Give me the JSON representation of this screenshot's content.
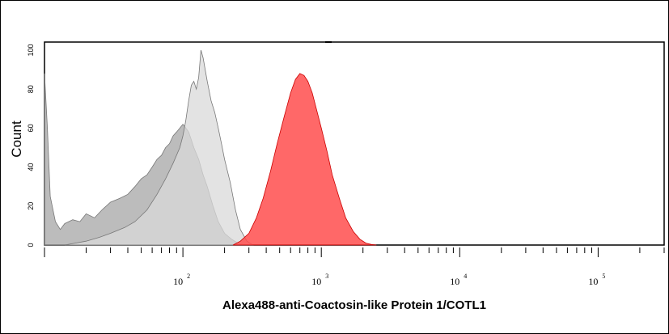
{
  "chart_data": {
    "type": "area",
    "title": "",
    "xlabel": "Alexa488-anti-Coactosin-like Protein 1/COTL1",
    "ylabel": "Count",
    "xscale": "log",
    "xlim": [
      10,
      300000
    ],
    "ylim": [
      0,
      100
    ],
    "x_ticks": [
      {
        "value": 100,
        "base": "10",
        "exp": "2"
      },
      {
        "value": 1000,
        "base": "10",
        "exp": "3"
      },
      {
        "value": 10000,
        "base": "10",
        "exp": "4"
      },
      {
        "value": 100000,
        "base": "10",
        "exp": "5"
      }
    ],
    "y_tick_labels": [
      "0",
      "20",
      "40",
      "60",
      "80",
      "100"
    ],
    "grid": false,
    "legend": "none",
    "series": [
      {
        "color": "#a6a6a6",
        "fill_opacity": 0.75,
        "x": [
          10,
          10.5,
          11,
          12,
          13,
          14,
          16,
          18,
          20,
          23,
          26,
          30,
          35,
          40,
          45,
          50,
          55,
          60,
          65,
          70,
          75,
          80,
          85,
          90,
          95,
          100,
          105,
          110,
          115,
          120,
          130,
          140,
          150,
          165,
          180,
          200,
          225,
          250,
          290
        ],
        "y": [
          88,
          60,
          25,
          12,
          8,
          11,
          13,
          12,
          16,
          14,
          18,
          22,
          24,
          26,
          30,
          34,
          36,
          40,
          44,
          46,
          50,
          52,
          56,
          58,
          60,
          62,
          60,
          58,
          54,
          50,
          44,
          36,
          30,
          20,
          12,
          6,
          3,
          1,
          0
        ]
      },
      {
        "color": "#d9d9d9",
        "fill_opacity": 0.75,
        "x": [
          14,
          20,
          25,
          30,
          38,
          45,
          55,
          65,
          75,
          85,
          95,
          100,
          105,
          110,
          115,
          120,
          125,
          130,
          135,
          140,
          150,
          160,
          170,
          180,
          190,
          200,
          220,
          240,
          260,
          290,
          320
        ],
        "y": [
          0,
          2,
          4,
          6,
          9,
          12,
          18,
          26,
          34,
          42,
          50,
          56,
          64,
          74,
          82,
          84,
          80,
          86,
          100,
          96,
          84,
          74,
          68,
          60,
          52,
          44,
          32,
          18,
          8,
          2,
          0
        ]
      },
      {
        "color": "#ff4d4d",
        "fill_opacity": 0.85,
        "x": [
          230,
          260,
          300,
          340,
          380,
          430,
          480,
          540,
          600,
          650,
          700,
          750,
          800,
          860,
          920,
          1000,
          1100,
          1200,
          1350,
          1500,
          1700,
          1900,
          2100,
          2300,
          2500
        ],
        "y": [
          0,
          2,
          6,
          14,
          24,
          38,
          52,
          66,
          78,
          85,
          88,
          87,
          84,
          78,
          70,
          60,
          48,
          36,
          24,
          14,
          7,
          3,
          1,
          0.3,
          0
        ]
      }
    ]
  }
}
